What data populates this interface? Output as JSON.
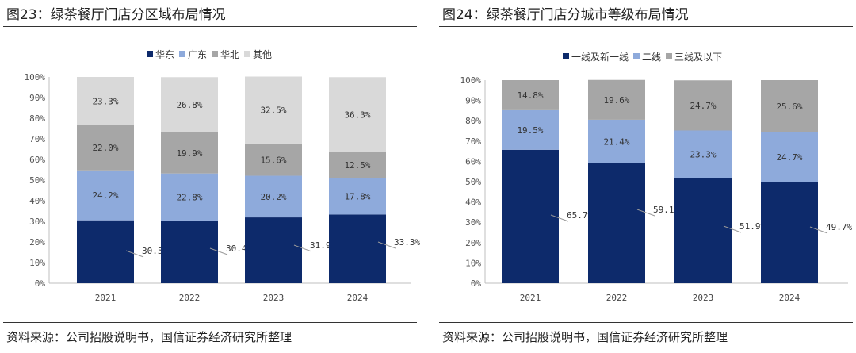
{
  "left": {
    "figure_title": "图23：绿茶餐厅门店分区域布局情况",
    "source": "资料来源：公司招股说明书，国信证券经济研究所整理"
  },
  "right": {
    "figure_title": "图24：绿茶餐厅门店分城市等级布局情况",
    "source": "资料来源：公司招股说明书，国信证券经济研究所整理"
  },
  "chart_data": [
    {
      "type": "bar",
      "stacked": true,
      "percent": true,
      "categories": [
        "2021",
        "2022",
        "2023",
        "2024"
      ],
      "series": [
        {
          "name": "华东",
          "values": [
            30.5,
            30.4,
            31.9,
            33.3
          ],
          "labels": [
            "30.5%",
            "30.4%",
            "31.9%",
            "33.3%"
          ],
          "color": "#0d2a6b",
          "label_outside": true
        },
        {
          "name": "广东",
          "values": [
            24.2,
            22.8,
            20.2,
            17.8
          ],
          "labels": [
            "24.2%",
            "22.8%",
            "20.2%",
            "17.8%"
          ],
          "color": "#8eaadb"
        },
        {
          "name": "华北",
          "values": [
            22.0,
            19.9,
            15.6,
            12.5
          ],
          "labels": [
            "22.0%",
            "19.9%",
            "15.6%",
            "12.5%"
          ],
          "color": "#a6a6a6"
        },
        {
          "name": "其他",
          "values": [
            23.3,
            26.8,
            32.5,
            36.3
          ],
          "labels": [
            "23.3%",
            "26.8%",
            "32.5%",
            "36.3%"
          ],
          "color": "#d9d9d9"
        }
      ],
      "yticks": [
        "0%",
        "10%",
        "20%",
        "30%",
        "40%",
        "50%",
        "60%",
        "70%",
        "80%",
        "90%",
        "100%"
      ],
      "ylim": [
        0,
        100
      ],
      "legend": "top",
      "grid": false
    },
    {
      "type": "bar",
      "stacked": true,
      "percent": true,
      "categories": [
        "2021",
        "2022",
        "2023",
        "2024"
      ],
      "series": [
        {
          "name": "一线及新一线",
          "values": [
            65.7,
            59.1,
            51.9,
            49.7
          ],
          "labels": [
            "65.7%",
            "59.1%",
            "51.9%",
            "49.7%"
          ],
          "color": "#0d2a6b",
          "label_outside": true
        },
        {
          "name": "二线",
          "values": [
            19.5,
            21.4,
            23.3,
            24.7
          ],
          "labels": [
            "19.5%",
            "21.4%",
            "23.3%",
            "24.7%"
          ],
          "color": "#8eaadb"
        },
        {
          "name": "三线及以下",
          "values": [
            14.8,
            19.6,
            24.7,
            25.6
          ],
          "labels": [
            "14.8%",
            "19.6%",
            "24.7%",
            "25.6%"
          ],
          "color": "#a6a6a6"
        }
      ],
      "yticks": [
        "0%",
        "10%",
        "20%",
        "30%",
        "40%",
        "50%",
        "60%",
        "70%",
        "80%",
        "90%",
        "100%"
      ],
      "ylim": [
        0,
        100
      ],
      "legend": "top",
      "grid": false
    }
  ]
}
